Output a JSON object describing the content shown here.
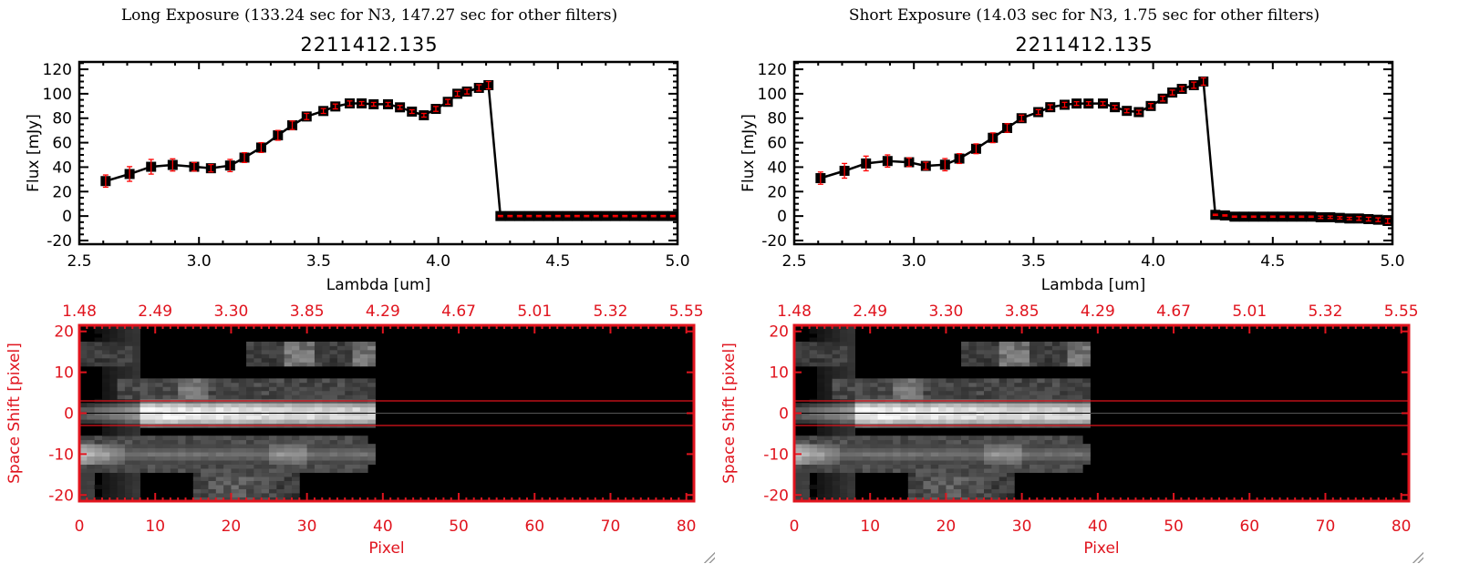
{
  "colors": {
    "axis_red": "#e0141e",
    "line": "#000000",
    "errorbar": "#ff0000",
    "marker": "#000000"
  },
  "chart_data": [
    {
      "type": "line",
      "panel": "left",
      "title": "Long Exposure (133.24 sec for N3, 147.27 sec for other filters)",
      "subtitle": "2211412.135",
      "xlabel": "Lambda [um]",
      "ylabel": "Flux [mJy]",
      "xlim": [
        2.5,
        5.0
      ],
      "ylim": [
        -23,
        126
      ],
      "xticks": [
        "2.5",
        "3.0",
        "3.5",
        "4.0",
        "4.5",
        "5.0"
      ],
      "yticks": [
        "-20",
        "0",
        "20",
        "40",
        "60",
        "80",
        "100",
        "120"
      ],
      "x": [
        2.61,
        2.71,
        2.8,
        2.89,
        2.98,
        3.05,
        3.13,
        3.19,
        3.26,
        3.33,
        3.39,
        3.45,
        3.52,
        3.57,
        3.63,
        3.68,
        3.73,
        3.79,
        3.84,
        3.89,
        3.94,
        3.99,
        4.04,
        4.08,
        4.12,
        4.17,
        4.21,
        4.26,
        4.3,
        4.34,
        4.38,
        4.42,
        4.46,
        4.5,
        4.54,
        4.58,
        4.62,
        4.66,
        4.7,
        4.74,
        4.78,
        4.82,
        4.86,
        4.9,
        4.94,
        4.98
      ],
      "y": [
        28.6,
        34.4,
        40.3,
        41.8,
        40.3,
        39.1,
        41.3,
        47.8,
        56,
        66,
        74.2,
        81.4,
        85.9,
        89.6,
        92.1,
        92.1,
        91.4,
        91.4,
        88.9,
        85.4,
        82.4,
        87.6,
        93.4,
        100,
        101.8,
        104.8,
        107,
        0,
        0,
        0,
        0,
        0,
        0,
        0,
        0,
        0,
        0,
        0,
        0,
        0,
        0,
        0,
        0,
        0,
        0,
        0
      ],
      "yerr": [
        5,
        6,
        6,
        5,
        3.5,
        3,
        5,
        4,
        4,
        4,
        3.5,
        2.5,
        2,
        2,
        2,
        1.5,
        1.5,
        1.5,
        1.5,
        1.5,
        1.5,
        2,
        2,
        2,
        2,
        2.5,
        3,
        0.5,
        0.5,
        0.5,
        0.5,
        0.5,
        0.5,
        0.5,
        0.5,
        0.5,
        0.5,
        0.5,
        0.5,
        0.5,
        0.5,
        0.5,
        0.5,
        0.5,
        0.5,
        0.5
      ]
    },
    {
      "type": "line",
      "panel": "right",
      "title": "Short Exposure (14.03 sec for N3, 1.75 sec for other filters)",
      "subtitle": "2211412.135",
      "xlabel": "Lambda [um]",
      "ylabel": "Flux [mJy]",
      "xlim": [
        2.5,
        5.0
      ],
      "ylim": [
        -23,
        126
      ],
      "xticks": [
        "2.5",
        "3.0",
        "3.5",
        "4.0",
        "4.5",
        "5.0"
      ],
      "yticks": [
        "-20",
        "0",
        "20",
        "40",
        "60",
        "80",
        "100",
        "120"
      ],
      "x": [
        2.61,
        2.71,
        2.8,
        2.89,
        2.98,
        3.05,
        3.13,
        3.19,
        3.26,
        3.33,
        3.39,
        3.45,
        3.52,
        3.57,
        3.63,
        3.68,
        3.73,
        3.79,
        3.84,
        3.89,
        3.94,
        3.99,
        4.04,
        4.08,
        4.12,
        4.17,
        4.21,
        4.26,
        4.3,
        4.34,
        4.38,
        4.42,
        4.46,
        4.5,
        4.54,
        4.58,
        4.62,
        4.66,
        4.7,
        4.74,
        4.78,
        4.82,
        4.86,
        4.9,
        4.94,
        4.98
      ],
      "y": [
        31,
        37,
        43,
        45,
        44,
        41,
        42,
        47,
        55,
        64,
        72,
        80,
        85,
        89,
        91,
        92,
        92,
        92,
        89,
        86,
        85,
        90,
        96,
        101,
        104,
        107,
        110,
        1,
        0.5,
        -0.5,
        -0.5,
        -0.5,
        -0.5,
        -0.5,
        -0.5,
        -0.5,
        -0.5,
        -0.5,
        -1,
        -1,
        -1.5,
        -2,
        -2,
        -2.5,
        -3,
        -4
      ],
      "yerr": [
        5,
        6,
        6,
        5,
        3.5,
        3,
        5,
        4,
        4,
        4,
        3.5,
        2.5,
        2,
        2,
        2,
        1.5,
        1.5,
        1.5,
        1.5,
        1.5,
        1.5,
        2,
        2,
        2,
        2,
        2.5,
        3,
        0.5,
        0.5,
        0.5,
        0.5,
        0.5,
        0.5,
        0.5,
        0.5,
        0.5,
        0.5,
        0.5,
        1,
        1,
        1,
        1,
        1.5,
        1.5,
        1.5,
        2
      ]
    },
    {
      "type": "heatmap",
      "panel": "left",
      "xlabel": "Pixel",
      "ylabel": "Space Shift [pixel]",
      "xlim": [
        0,
        81
      ],
      "ylim": [
        -21.5,
        21.5
      ],
      "xticks": [
        "0",
        "10",
        "20",
        "30",
        "40",
        "50",
        "60",
        "70",
        "80"
      ],
      "top_xticks": [
        "1.48",
        "2.49",
        "3.30",
        "3.85",
        "4.29",
        "4.67",
        "5.01",
        "5.32",
        "5.55"
      ],
      "yticks": [
        "-20",
        "-10",
        "0",
        "10",
        "20"
      ],
      "data_extent_pixel": 39,
      "aperture_lines": [
        3,
        -3
      ],
      "center_line": 0,
      "colormap": "grayscale"
    },
    {
      "type": "heatmap",
      "panel": "right",
      "xlabel": "Pixel",
      "ylabel": "Space Shift [pixel]",
      "xlim": [
        0,
        81
      ],
      "ylim": [
        -21.5,
        21.5
      ],
      "xticks": [
        "0",
        "10",
        "20",
        "30",
        "40",
        "50",
        "60",
        "70",
        "80"
      ],
      "top_xticks": [
        "1.48",
        "2.49",
        "3.30",
        "3.85",
        "4.29",
        "4.67",
        "5.01",
        "5.32",
        "5.55"
      ],
      "yticks": [
        "-20",
        "-10",
        "0",
        "10",
        "20"
      ],
      "data_extent_pixel": 39,
      "aperture_lines": [
        3,
        -3
      ],
      "center_line": 0,
      "colormap": "grayscale"
    }
  ]
}
